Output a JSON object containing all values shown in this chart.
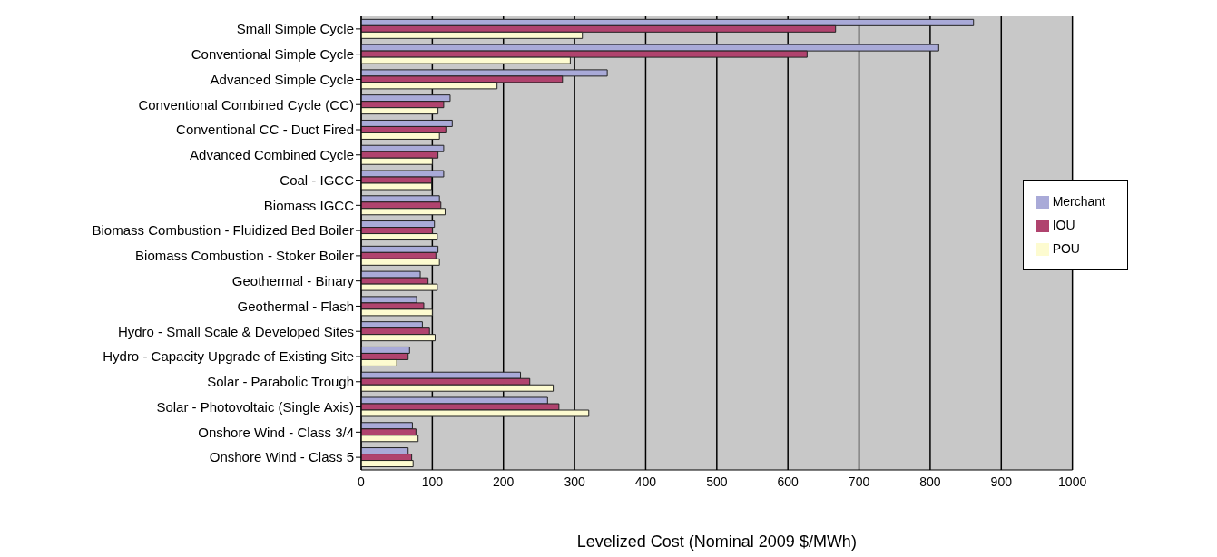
{
  "chart_data": {
    "type": "bar",
    "orientation": "horizontal",
    "xlabel": "Levelized Cost (Nominal 2009 $/MWh)",
    "categories": [
      "Small Simple Cycle",
      "Conventional  Simple Cycle",
      "Advanced Simple Cycle",
      "Conventional  Combined Cycle (CC)",
      "Conventional  CC - Duct Fired",
      "Advanced Combined Cycle",
      "Coal - IGCC",
      "Biomass IGCC",
      "Biomass Combustion - Fluidized Bed Boiler",
      "Biomass Combustion - Stoker Boiler",
      "Geothermal - Binary",
      "Geothermal - Flash",
      "Hydro - Small Scale & Developed Sites",
      "Hydro - Capacity Upgrade of Existing Site",
      "Solar - Parabolic Trough",
      "Solar - Photovoltaic (Single Axis)",
      "Onshore Wind - Class 3/4",
      "Onshore Wind - Class 5"
    ],
    "series": [
      {
        "name": "Merchant",
        "color": "#a9aad8",
        "values": [
          861,
          812,
          346,
          125,
          128,
          116,
          116,
          110,
          103,
          108,
          83,
          78,
          86,
          68,
          224,
          262,
          72,
          66
        ]
      },
      {
        "name": "IOU",
        "color": "#b0436e",
        "values": [
          667,
          627,
          283,
          116,
          119,
          108,
          99,
          112,
          100,
          105,
          94,
          88,
          96,
          66,
          237,
          278,
          77,
          71
        ]
      },
      {
        "name": "POU",
        "color": "#fdfbd0",
        "values": [
          311,
          294,
          191,
          108,
          110,
          100,
          99,
          118,
          107,
          110,
          107,
          100,
          104,
          50,
          270,
          320,
          80,
          73
        ]
      }
    ],
    "xlim": [
      0,
      1000
    ],
    "xticks": [
      0,
      100,
      200,
      300,
      400,
      500,
      600,
      700,
      800,
      900,
      1000
    ],
    "grid": "x",
    "legend": "right"
  }
}
